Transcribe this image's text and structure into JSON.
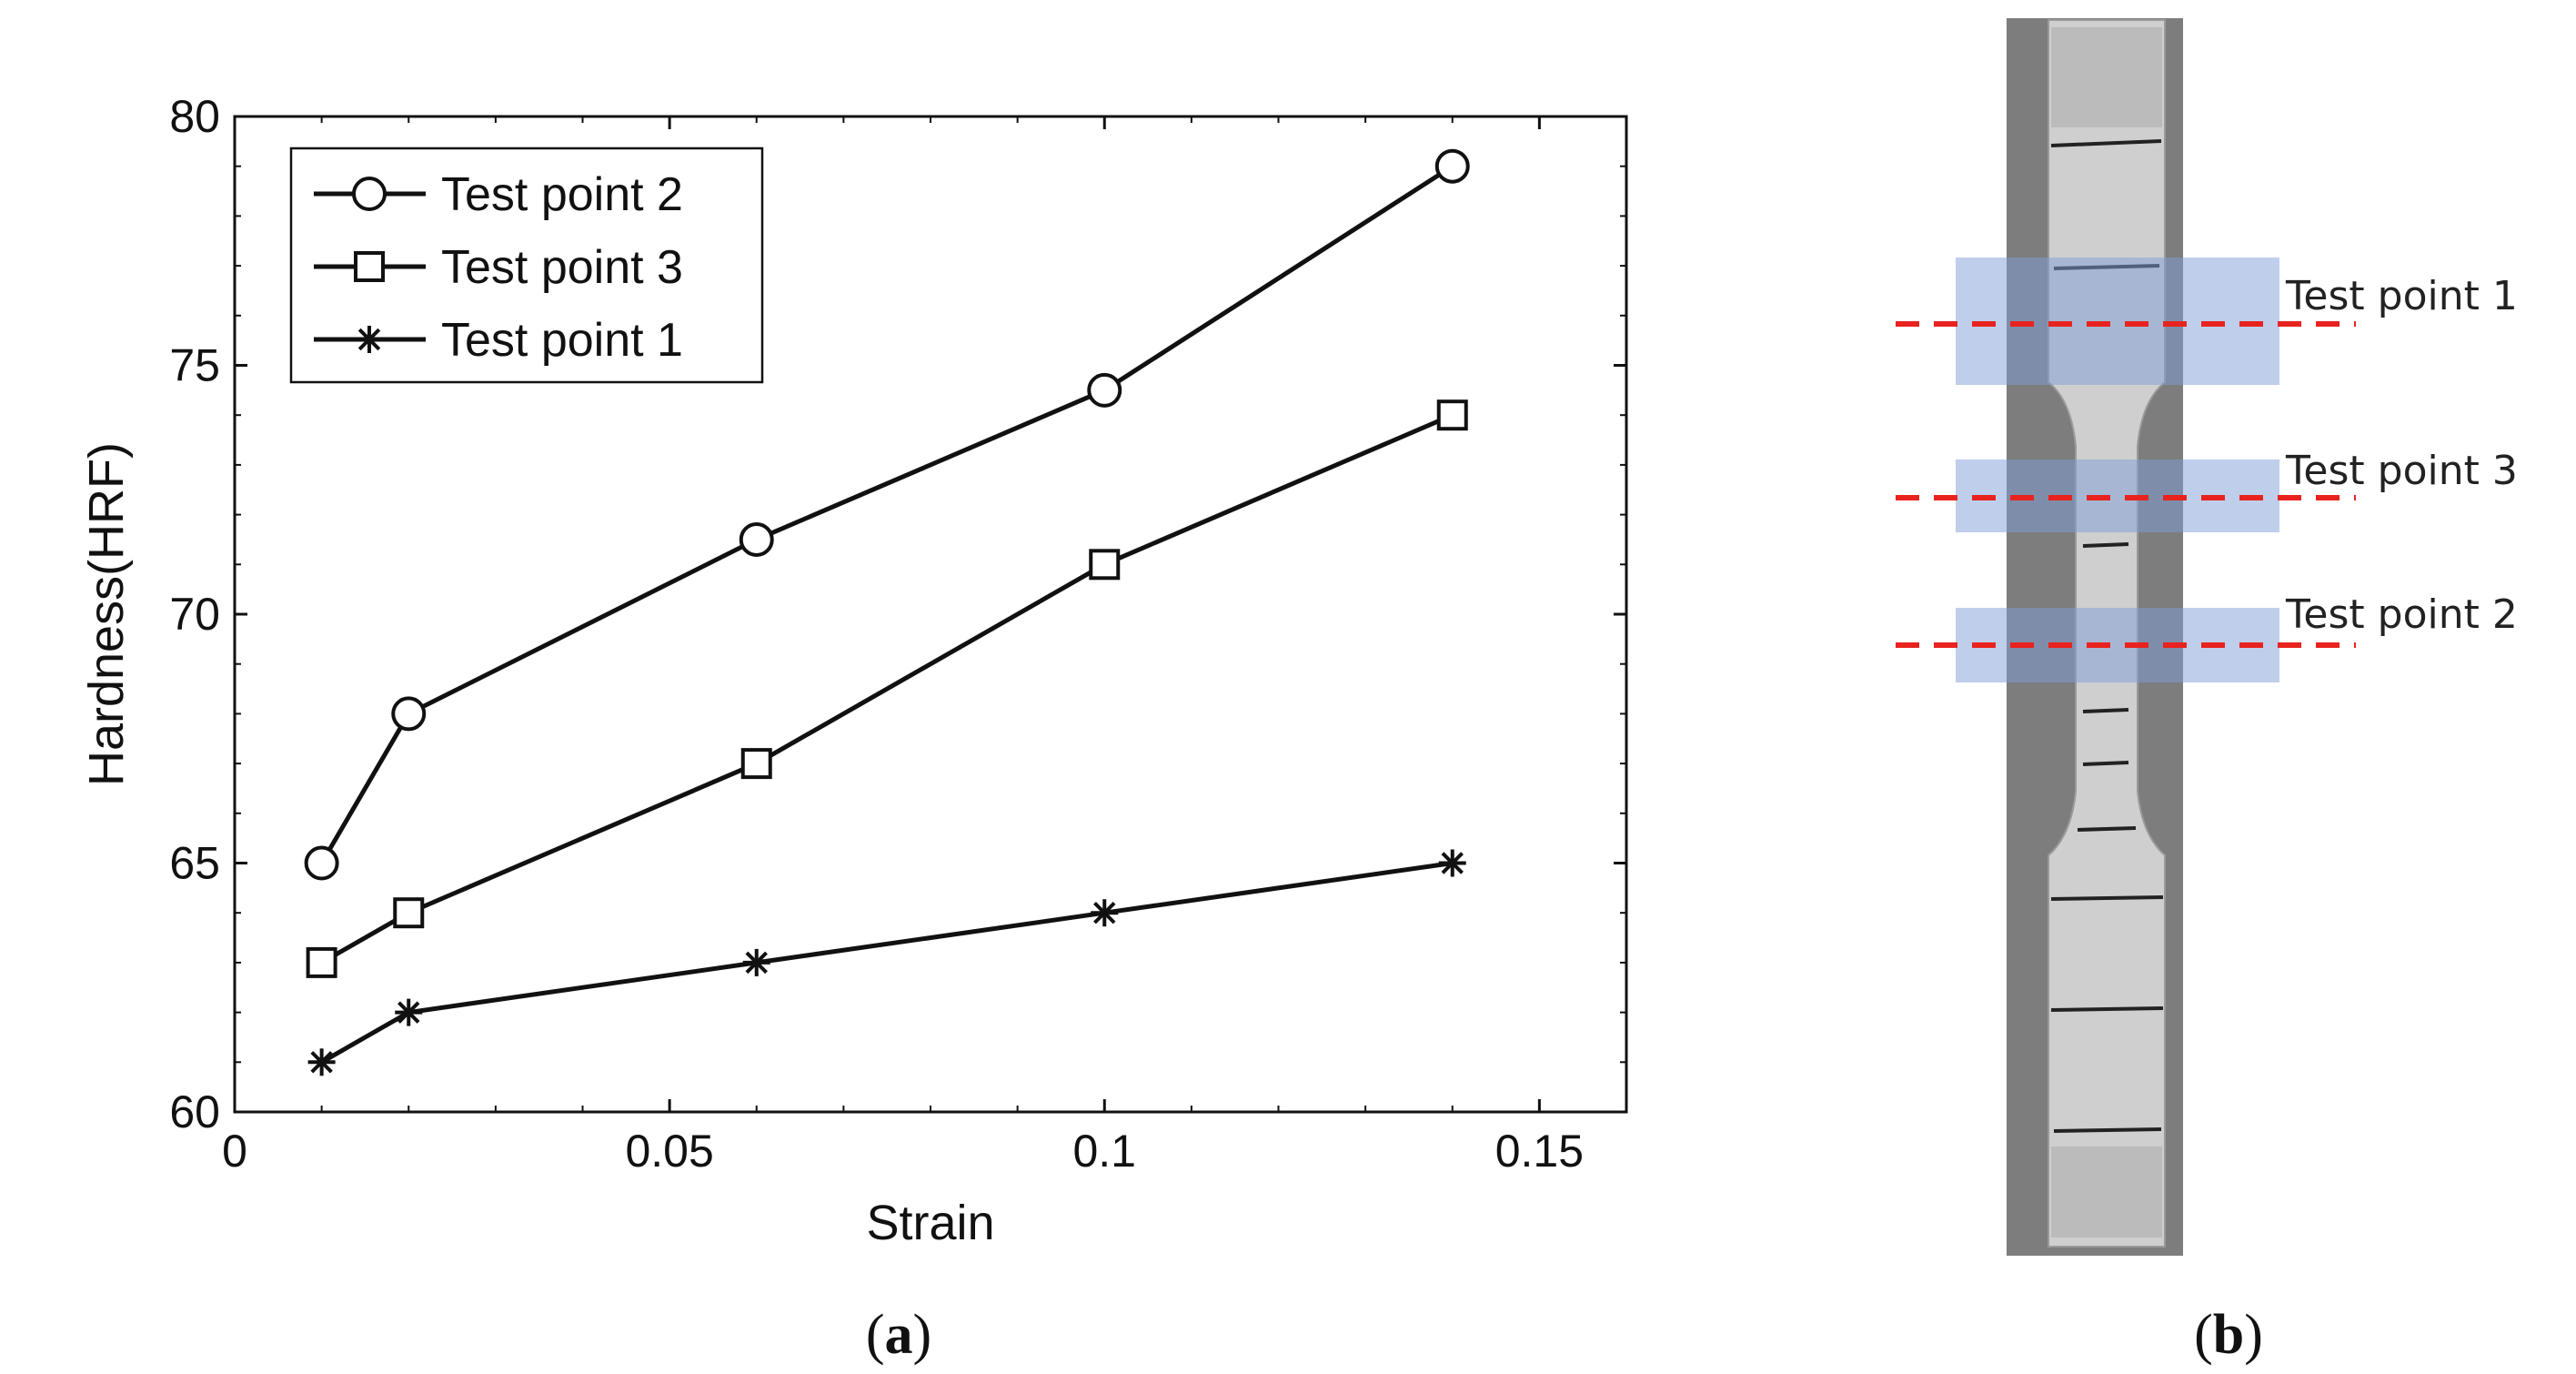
{
  "panel_a": {
    "label_open": "(",
    "label_letter": "a",
    "label_close": ")"
  },
  "panel_b": {
    "label_open": "(",
    "label_letter": "b",
    "label_close": ")",
    "test_point_labels": [
      "Test point 1",
      "Test point 3",
      "Test point 2"
    ],
    "line_color": "#e8231f",
    "band_color": "#7f9fd8"
  },
  "chart_data": {
    "type": "line",
    "xlabel": "Strain",
    "ylabel": "Hardness(HRF)",
    "xlim": [
      0,
      0.16
    ],
    "ylim": [
      60,
      80
    ],
    "xticks": [
      0,
      0.05,
      0.1,
      0.15
    ],
    "xtick_labels": [
      "0",
      "0.05",
      "0.1",
      "0.15"
    ],
    "yticks": [
      60,
      65,
      70,
      75,
      80
    ],
    "ytick_labels": [
      "60",
      "65",
      "70",
      "75",
      "80"
    ],
    "grid": false,
    "legend_position": "top-left",
    "series": [
      {
        "name": "Test point 2",
        "marker": "circle",
        "x": [
          0.01,
          0.02,
          0.06,
          0.1,
          0.14
        ],
        "y": [
          65,
          68,
          71.5,
          74.5,
          79
        ]
      },
      {
        "name": "Test point 3",
        "marker": "square",
        "x": [
          0.01,
          0.02,
          0.06,
          0.1,
          0.14
        ],
        "y": [
          63,
          64,
          67,
          71,
          74
        ]
      },
      {
        "name": "Test point 1",
        "marker": "asterisk",
        "x": [
          0.01,
          0.02,
          0.06,
          0.1,
          0.14
        ],
        "y": [
          61,
          62,
          63,
          64,
          65
        ]
      }
    ]
  }
}
